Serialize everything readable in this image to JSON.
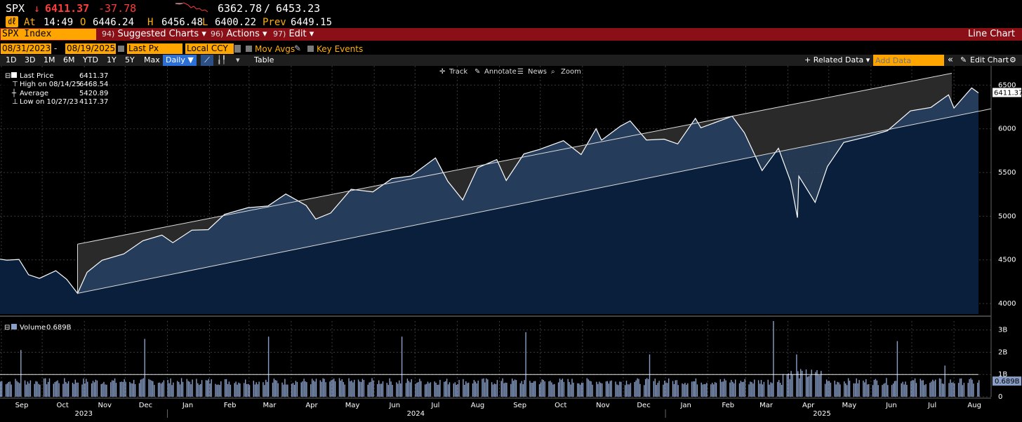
{
  "quote": {
    "ticker": "SPX",
    "arrow": "↓",
    "last": "6411.37",
    "change": "-37.78",
    "range_low": "6362.78",
    "range_sep": "/",
    "range_high": "6453.23",
    "badge": "㎗",
    "at_label": "At",
    "time": "14:49",
    "open_label": "O",
    "open": "6446.24",
    "high_label": "H",
    "high": "6456.48",
    "low_label": "L",
    "low": "6400.22",
    "prev_label": "Prev",
    "prev": "6449.15"
  },
  "menu": {
    "security": "SPX Index",
    "items": [
      {
        "num": "94)",
        "label": "Suggested Charts ▾"
      },
      {
        "num": "96)",
        "label": "Actions ▾"
      },
      {
        "num": "97)",
        "label": "Edit ▾"
      }
    ],
    "right_title": "Line Chart"
  },
  "daterow": {
    "start_date": "08/31/2023",
    "dash": "-",
    "end_date": "08/19/2025",
    "field": "Last Px",
    "currency": "Local CCY",
    "mov_avgs": "Mov Avgs",
    "key_events": "Key Events"
  },
  "perrow": {
    "periods": [
      "1D",
      "3D",
      "1M",
      "6M",
      "YTD",
      "1Y",
      "5Y",
      "Max"
    ],
    "freq": "Daily ▼",
    "table": "Table",
    "related": "+ Related Data ▾",
    "add_data_placeholder": "Add Data",
    "edit_chart": "Edit Chart",
    "collapse": "«"
  },
  "toolbar": {
    "track": "Track",
    "annotate": "Annotate",
    "news": "News",
    "zoom": "Zoom"
  },
  "legend": [
    {
      "label": "Last Price",
      "value": "6411.37"
    },
    {
      "label": "High on 08/14/25",
      "value": "6468.54"
    },
    {
      "label": "Average",
      "value": "5420.89"
    },
    {
      "label": "Low on 10/27/23",
      "value": "4117.37"
    }
  ],
  "volume_legend": {
    "label": "Volume",
    "value": "0.689B"
  },
  "colors": {
    "menu_bg": "#8a0f17",
    "amber": "#ffa500",
    "price_fill": "#0a1f3c",
    "price_line": "#ffffff",
    "channel_fill": "#2a2a2a",
    "volume_bar": "#8a9fc8",
    "down_red": "#ff3c3c"
  },
  "chart_data": {
    "type": "line",
    "title": "SPX Index",
    "price_axis": {
      "ticks": [
        4000,
        4500,
        5000,
        5500,
        6000,
        6500
      ],
      "range": [
        3880,
        6720
      ],
      "last_label": "6411.37"
    },
    "volume_axis": {
      "ticks": [
        "0",
        "1B",
        "2B",
        "3B"
      ],
      "tick_values": [
        0,
        1,
        2,
        3
      ],
      "range": [
        0,
        3.4
      ],
      "last_label": "0.689B"
    },
    "x_labels": [
      "Sep",
      "Oct",
      "Nov",
      "Dec",
      "Jan",
      "Feb",
      "Mar",
      "Apr",
      "May",
      "Jun",
      "Jul",
      "Aug",
      "Sep",
      "Oct",
      "Nov",
      "Dec",
      "Jan",
      "Feb",
      "Mar",
      "Apr",
      "May",
      "Jun",
      "Jul",
      "Aug"
    ],
    "years": [
      "2023",
      "2024",
      "2025"
    ],
    "x_start": "2023-08-31",
    "x_end": "2025-08-19",
    "channel": {
      "upper": [
        {
          "date": "2023-10-27",
          "value": 4680
        },
        {
          "date": "2025-08-14",
          "value": 6680
        }
      ],
      "lower": [
        {
          "date": "2023-10-27",
          "value": 4117
        },
        {
          "date": "2025-08-19",
          "value": 6200
        }
      ]
    },
    "series": [
      {
        "name": "Last Price",
        "points": [
          [
            "2023-08-31",
            4508
          ],
          [
            "2023-09-05",
            4497
          ],
          [
            "2023-09-14",
            4505
          ],
          [
            "2023-09-21",
            4330
          ],
          [
            "2023-09-29",
            4288
          ],
          [
            "2023-10-11",
            4376
          ],
          [
            "2023-10-19",
            4278
          ],
          [
            "2023-10-27",
            4117
          ],
          [
            "2023-11-03",
            4358
          ],
          [
            "2023-11-14",
            4495
          ],
          [
            "2023-11-30",
            4568
          ],
          [
            "2023-12-14",
            4719
          ],
          [
            "2023-12-28",
            4783
          ],
          [
            "2024-01-05",
            4697
          ],
          [
            "2024-01-19",
            4840
          ],
          [
            "2024-01-31",
            4846
          ],
          [
            "2024-02-12",
            5021
          ],
          [
            "2024-02-29",
            5096
          ],
          [
            "2024-03-15",
            5117
          ],
          [
            "2024-03-28",
            5254
          ],
          [
            "2024-04-12",
            5123
          ],
          [
            "2024-04-19",
            4967
          ],
          [
            "2024-04-30",
            5036
          ],
          [
            "2024-05-15",
            5308
          ],
          [
            "2024-05-31",
            5278
          ],
          [
            "2024-06-14",
            5431
          ],
          [
            "2024-06-28",
            5460
          ],
          [
            "2024-07-16",
            5667
          ],
          [
            "2024-07-25",
            5400
          ],
          [
            "2024-08-05",
            5186
          ],
          [
            "2024-08-16",
            5554
          ],
          [
            "2024-08-30",
            5648
          ],
          [
            "2024-09-06",
            5408
          ],
          [
            "2024-09-19",
            5713
          ],
          [
            "2024-09-30",
            5762
          ],
          [
            "2024-10-18",
            5864
          ],
          [
            "2024-10-31",
            5705
          ],
          [
            "2024-11-11",
            6001
          ],
          [
            "2024-11-15",
            5870
          ],
          [
            "2024-11-29",
            6032
          ],
          [
            "2024-12-06",
            6090
          ],
          [
            "2024-12-18",
            5872
          ],
          [
            "2024-12-31",
            5882
          ],
          [
            "2025-01-10",
            5827
          ],
          [
            "2025-01-23",
            6119
          ],
          [
            "2025-01-27",
            6012
          ],
          [
            "2025-02-19",
            6144
          ],
          [
            "2025-02-28",
            5955
          ],
          [
            "2025-03-13",
            5522
          ],
          [
            "2025-03-25",
            5777
          ],
          [
            "2025-04-03",
            5397
          ],
          [
            "2025-04-08",
            4983
          ],
          [
            "2025-04-09",
            5457
          ],
          [
            "2025-04-21",
            5158
          ],
          [
            "2025-04-30",
            5569
          ],
          [
            "2025-05-12",
            5844
          ],
          [
            "2025-05-30",
            5912
          ],
          [
            "2025-06-13",
            5977
          ],
          [
            "2025-06-30",
            6205
          ],
          [
            "2025-07-15",
            6244
          ],
          [
            "2025-07-28",
            6389
          ],
          [
            "2025-08-01",
            6238
          ],
          [
            "2025-08-14",
            6468
          ],
          [
            "2025-08-19",
            6411
          ]
        ]
      },
      {
        "name": "Volume",
        "unit": "B",
        "approx_daily": 0.7,
        "spikes": [
          [
            "2023-09-15",
            2.1
          ],
          [
            "2023-12-15",
            2.6
          ],
          [
            "2024-03-15",
            2.7
          ],
          [
            "2024-06-21",
            2.7
          ],
          [
            "2024-09-20",
            2.9
          ],
          [
            "2024-12-20",
            1.9
          ],
          [
            "2025-03-21",
            3.4
          ],
          [
            "2025-04-07",
            1.9
          ],
          [
            "2025-06-20",
            2.5
          ],
          [
            "2025-07-25",
            1.4
          ]
        ]
      },
      {
        "name": "Volume Avg",
        "value": 1.0
      }
    ]
  }
}
